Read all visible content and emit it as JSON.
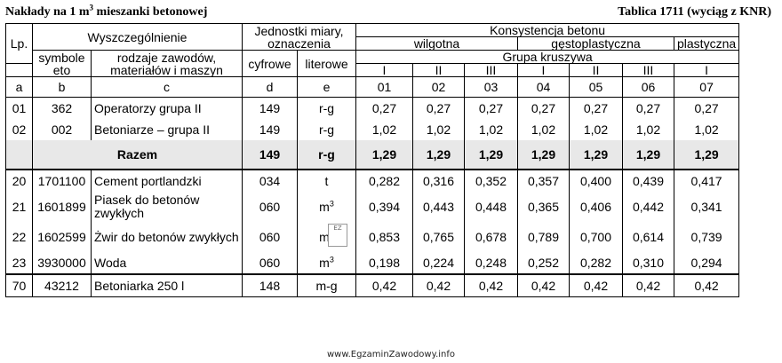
{
  "header": {
    "left_prefix": "Nakłady na 1 m",
    "left_sup": "3",
    "left_suffix": " mieszanki betonowej",
    "right": "Tablica 1711 (wyciąg z KNR)"
  },
  "columns": {
    "lp": "Lp.",
    "wyszczegolnienie": "Wyszczególnienie",
    "jednostki": "Jednostki miary, oznaczenia",
    "konsystencja": "Konsystencja betonu",
    "symbole": "symbole eto",
    "rodzaje": "rodzaje zawodów, materiałów i maszyn",
    "cyfrowe": "cyfrowe",
    "literowe": "literowe",
    "wilgotna": "wilgotna",
    "gestoplastyczna": "gęstoplastyczna",
    "plastyczna": "plastyczna",
    "grupa": "Grupa kruszywa",
    "groups": [
      "I",
      "II",
      "III",
      "I",
      "II",
      "III",
      "I"
    ],
    "letters": [
      "a",
      "b",
      "c",
      "d",
      "e",
      "01",
      "02",
      "03",
      "04",
      "05",
      "06",
      "07"
    ]
  },
  "labor": [
    {
      "lp": "01",
      "symbol": "362",
      "name": "Operatorzy grupa II",
      "num": "149",
      "unit": "r-g",
      "values": [
        "0,27",
        "0,27",
        "0,27",
        "0,27",
        "0,27",
        "0,27",
        "0,27"
      ]
    },
    {
      "lp": "02",
      "symbol": "002",
      "name": "Betoniarze – grupa II",
      "num": "149",
      "unit": "r-g",
      "values": [
        "1,02",
        "1,02",
        "1,02",
        "1,02",
        "1,02",
        "1,02",
        "1,02"
      ]
    }
  ],
  "razem": {
    "label": "Razem",
    "num": "149",
    "unit": "r-g",
    "values": [
      "1,29",
      "1,29",
      "1,29",
      "1,29",
      "1,29",
      "1,29",
      "1,29"
    ]
  },
  "materials": [
    {
      "lp": "20",
      "symbol": "1701100",
      "name": "Cement portlandzki",
      "num": "034",
      "unit": "t",
      "unit_sup": "",
      "values": [
        "0,282",
        "0,316",
        "0,352",
        "0,357",
        "0,400",
        "0,439",
        "0,417"
      ]
    },
    {
      "lp": "21",
      "symbol": "1601899",
      "name": "Piasek do betonów zwykłych",
      "num": "060",
      "unit": "m",
      "unit_sup": "3",
      "values": [
        "0,394",
        "0,443",
        "0,448",
        "0,365",
        "0,406",
        "0,442",
        "0,341"
      ]
    },
    {
      "lp": "22",
      "symbol": "1602599",
      "name": "Żwir do betonów zwykłych",
      "num": "060",
      "unit": "m",
      "unit_sup": "3",
      "values": [
        "0,853",
        "0,765",
        "0,678",
        "0,789",
        "0,700",
        "0,614",
        "0,739"
      ]
    },
    {
      "lp": "23",
      "symbol": "3930000",
      "name": "Woda",
      "num": "060",
      "unit": "m",
      "unit_sup": "3",
      "values": [
        "0,198",
        "0,224",
        "0,248",
        "0,252",
        "0,282",
        "0,310",
        "0,294"
      ]
    }
  ],
  "machine": {
    "lp": "70",
    "symbol": "43212",
    "name": "Betoniarka 250 l",
    "num": "148",
    "unit": "m-g",
    "values": [
      "0,42",
      "0,42",
      "0,42",
      "0,42",
      "0,42",
      "0,42",
      "0,42"
    ]
  },
  "footer": "www.EgzaminZawodowy.info"
}
